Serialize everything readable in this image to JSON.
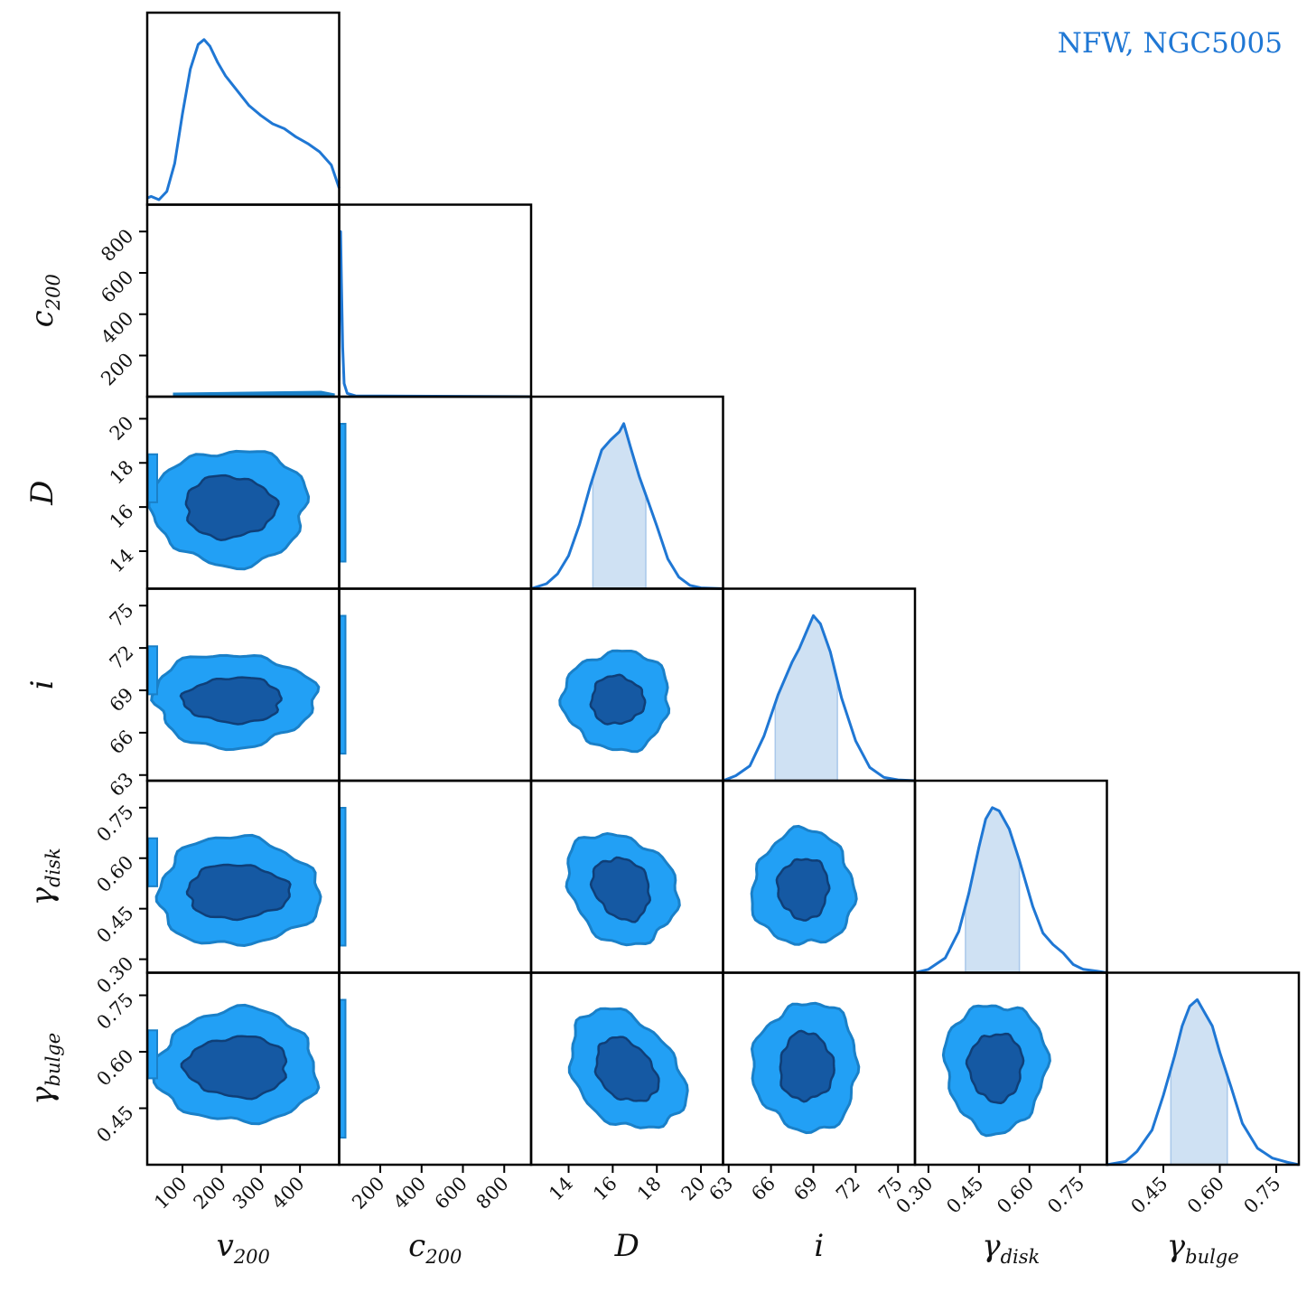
{
  "title": "NFW, NGC5005",
  "colors": {
    "accent": "#1f77d4",
    "inner": "#1559a3",
    "outer": "#22a0f5",
    "band": "#cfe1f3",
    "frame": "#000000"
  },
  "chart_data": {
    "type": "corner",
    "parameters": [
      {
        "key": "v200",
        "label_main": "v",
        "label_sub": "200",
        "range": [
          10,
          500
        ],
        "ticks": [
          100,
          200,
          300,
          400
        ]
      },
      {
        "key": "c200",
        "label_main": "c",
        "label_sub": "200",
        "range": [
          1,
          930
        ],
        "ticks": [
          200,
          400,
          600,
          800
        ]
      },
      {
        "key": "D",
        "label_main": "D",
        "label_sub": "",
        "range": [
          12.3,
          21.0
        ],
        "ticks": [
          14,
          16,
          18,
          20
        ]
      },
      {
        "key": "i",
        "label_main": "i",
        "label_sub": "",
        "range": [
          62.6,
          76.2
        ],
        "ticks": [
          63,
          66,
          69,
          72,
          75
        ]
      },
      {
        "key": "gamma_disk",
        "label_main": "γ",
        "label_sub": "disk",
        "range": [
          0.26,
          0.83
        ],
        "ticks": [
          0.3,
          0.45,
          0.6,
          0.75
        ]
      },
      {
        "key": "gamma_bulge",
        "label_main": "γ",
        "label_sub": "bulge",
        "range": [
          0.3,
          0.81
        ],
        "ticks": [
          0.45,
          0.6,
          0.75
        ]
      }
    ],
    "tick_text": {
      "v200": [
        "100",
        "200",
        "300",
        "400"
      ],
      "c200": [
        "200",
        "400",
        "600",
        "800"
      ],
      "D": [
        "14",
        "16",
        "18",
        "20"
      ],
      "i": [
        "63",
        "66",
        "69",
        "72",
        "75"
      ],
      "gamma_disk": [
        "0.30",
        "0.45",
        "0.60",
        "0.75"
      ],
      "gamma_bulge": [
        "0.45",
        "0.60",
        "0.75"
      ]
    },
    "marginals": [
      {
        "x": [
          10,
          20,
          40,
          60,
          80,
          100,
          120,
          140,
          155,
          170,
          190,
          210,
          240,
          270,
          300,
          330,
          360,
          390,
          420,
          450,
          480,
          500
        ],
        "y": [
          0.04,
          0.05,
          0.03,
          0.08,
          0.25,
          0.55,
          0.82,
          0.97,
          1.0,
          0.96,
          0.86,
          0.78,
          0.69,
          0.6,
          0.54,
          0.49,
          0.46,
          0.41,
          0.37,
          0.32,
          0.24,
          0.1
        ]
      },
      {
        "x": [
          1,
          4,
          8,
          12,
          18,
          25,
          40,
          80,
          930
        ],
        "y": [
          0.1,
          0.96,
          1.0,
          0.7,
          0.3,
          0.08,
          0.02,
          0.005,
          0.0
        ]
      },
      {
        "x": [
          12.3,
          13.0,
          13.5,
          14.0,
          14.5,
          15.0,
          15.5,
          15.9,
          16.3,
          16.5,
          16.8,
          17.2,
          17.6,
          18.0,
          18.5,
          19.0,
          19.5,
          20.0,
          21.0
        ],
        "y": [
          0.0,
          0.03,
          0.09,
          0.2,
          0.39,
          0.63,
          0.84,
          0.9,
          0.95,
          1.0,
          0.86,
          0.68,
          0.53,
          0.38,
          0.18,
          0.07,
          0.02,
          0.005,
          0.0
        ],
        "band": [
          15.1,
          17.5
        ]
      },
      {
        "x": [
          62.6,
          63.5,
          64.5,
          65.5,
          66.5,
          67.5,
          68.0,
          68.5,
          69.0,
          69.5,
          70.2,
          71.0,
          72.0,
          73.0,
          74.0,
          75.0,
          76.2
        ],
        "y": [
          0.0,
          0.03,
          0.09,
          0.27,
          0.52,
          0.72,
          0.8,
          0.9,
          1.0,
          0.95,
          0.78,
          0.5,
          0.24,
          0.08,
          0.02,
          0.005,
          0.0
        ],
        "band": [
          66.3,
          70.7
        ]
      },
      {
        "x": [
          0.26,
          0.3,
          0.35,
          0.39,
          0.42,
          0.45,
          0.47,
          0.49,
          0.51,
          0.54,
          0.57,
          0.61,
          0.64,
          0.67,
          0.7,
          0.73,
          0.76,
          0.8,
          0.83
        ],
        "y": [
          0.0,
          0.02,
          0.09,
          0.25,
          0.48,
          0.76,
          0.93,
          1.0,
          0.98,
          0.87,
          0.68,
          0.4,
          0.24,
          0.17,
          0.12,
          0.05,
          0.02,
          0.01,
          0.0
        ],
        "band": [
          0.41,
          0.57
        ]
      },
      {
        "x": [
          0.3,
          0.35,
          0.38,
          0.42,
          0.45,
          0.48,
          0.5,
          0.52,
          0.54,
          0.56,
          0.58,
          0.6,
          0.63,
          0.66,
          0.7,
          0.74,
          0.78,
          0.81
        ],
        "y": [
          0.0,
          0.02,
          0.08,
          0.21,
          0.42,
          0.66,
          0.84,
          0.96,
          1.0,
          0.92,
          0.84,
          0.68,
          0.47,
          0.25,
          0.1,
          0.04,
          0.015,
          0.0
        ],
        "band": [
          0.47,
          0.62
        ]
      }
    ],
    "contours_2d": [
      {
        "i": 2,
        "j": 0,
        "cx": 220,
        "cy": 16.0,
        "rx_in": 115,
        "ry_in": 1.4,
        "rx_out": 200,
        "ry_out": 2.6,
        "rho": 0.0
      },
      {
        "i": 3,
        "j": 0,
        "cx": 230,
        "cy": 68.3,
        "rx_in": 125,
        "ry_in": 1.6,
        "rx_out": 205,
        "ry_out": 3.3,
        "rho": 0.0
      },
      {
        "i": 4,
        "j": 0,
        "cx": 240,
        "cy": 0.5,
        "rx_in": 130,
        "ry_in": 0.08,
        "rx_out": 205,
        "ry_out": 0.16,
        "rho": 0.0
      },
      {
        "i": 5,
        "j": 0,
        "cx": 240,
        "cy": 0.56,
        "rx_in": 130,
        "ry_in": 0.08,
        "rx_out": 205,
        "ry_out": 0.15,
        "rho": 0.0
      },
      {
        "i": 3,
        "j": 2,
        "cx": 16.2,
        "cy": 68.3,
        "rx_in": 1.2,
        "ry_in": 1.7,
        "rx_out": 2.4,
        "ry_out": 3.5,
        "rho": 0.0
      },
      {
        "i": 4,
        "j": 2,
        "cx": 16.4,
        "cy": 0.51,
        "rx_in": 1.3,
        "ry_in": 0.09,
        "rx_out": 2.5,
        "ry_out": 0.16,
        "rho": -0.35
      },
      {
        "i": 5,
        "j": 2,
        "cx": 16.6,
        "cy": 0.55,
        "rx_in": 1.4,
        "ry_in": 0.08,
        "rx_out": 2.6,
        "ry_out": 0.15,
        "rho": -0.55
      },
      {
        "i": 4,
        "j": 3,
        "cx": 68.3,
        "cy": 0.51,
        "rx_in": 1.8,
        "ry_in": 0.09,
        "rx_out": 3.6,
        "ry_out": 0.17,
        "rho": 0.0
      },
      {
        "i": 5,
        "j": 3,
        "cx": 68.5,
        "cy": 0.56,
        "rx_in": 1.9,
        "ry_in": 0.09,
        "rx_out": 3.7,
        "ry_out": 0.17,
        "rho": 0.0
      },
      {
        "i": 5,
        "j": 4,
        "cx": 0.5,
        "cy": 0.56,
        "rx_in": 0.08,
        "ry_in": 0.09,
        "rx_out": 0.15,
        "ry_out": 0.17,
        "rho": 0.0
      }
    ]
  }
}
